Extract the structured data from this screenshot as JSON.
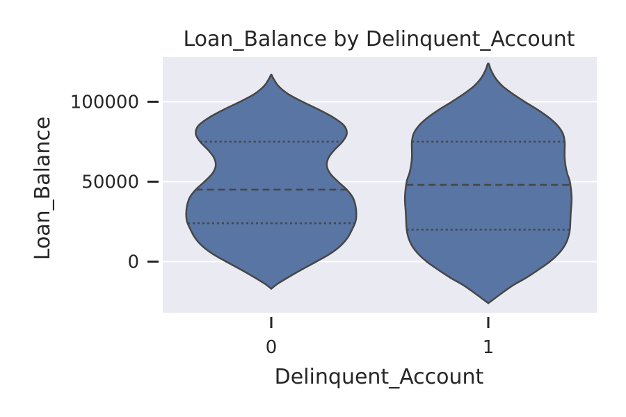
{
  "chart_data": {
    "type": "violin",
    "title": "Loan_Balance by Delinquent_Account",
    "xlabel": "Delinquent_Account",
    "ylabel": "Loan_Balance",
    "categories": [
      "0",
      "1"
    ],
    "y_ticks": [
      0,
      50000,
      100000
    ],
    "y_tick_labels": [
      "0",
      "50000",
      "100000"
    ],
    "ylim": [
      -32000,
      128000
    ],
    "grid": true,
    "inner": "quartile",
    "colors": {
      "background": "#eaeaf2",
      "violin_fill": "#5875a4",
      "violin_edge": "#464646",
      "grid": "#ffffff",
      "text": "#262626"
    },
    "violins": [
      {
        "category": "0",
        "quartiles": {
          "q1": 24000,
          "median": 45000,
          "q3": 75000
        },
        "density_profile": [
          [
            -17000,
            0.0
          ],
          [
            -14000,
            0.07
          ],
          [
            -10000,
            0.19
          ],
          [
            -5000,
            0.35
          ],
          [
            0,
            0.52
          ],
          [
            5000,
            0.68
          ],
          [
            10000,
            0.8
          ],
          [
            15000,
            0.88
          ],
          [
            20000,
            0.93
          ],
          [
            25000,
            0.97
          ],
          [
            30000,
            0.98
          ],
          [
            35000,
            0.97
          ],
          [
            40000,
            0.94
          ],
          [
            45000,
            0.87
          ],
          [
            50000,
            0.77
          ],
          [
            55000,
            0.68
          ],
          [
            60000,
            0.64
          ],
          [
            65000,
            0.66
          ],
          [
            70000,
            0.73
          ],
          [
            75000,
            0.82
          ],
          [
            80000,
            0.87
          ],
          [
            85000,
            0.84
          ],
          [
            90000,
            0.72
          ],
          [
            95000,
            0.55
          ],
          [
            100000,
            0.36
          ],
          [
            105000,
            0.19
          ],
          [
            110000,
            0.08
          ],
          [
            115000,
            0.02
          ],
          [
            117000,
            0.0
          ]
        ]
      },
      {
        "category": "1",
        "quartiles": {
          "q1": 20000,
          "median": 48000,
          "q3": 75000
        },
        "density_profile": [
          [
            -26000,
            0.0
          ],
          [
            -24000,
            0.05
          ],
          [
            -20000,
            0.15
          ],
          [
            -15000,
            0.28
          ],
          [
            -10000,
            0.44
          ],
          [
            -5000,
            0.58
          ],
          [
            0,
            0.71
          ],
          [
            5000,
            0.81
          ],
          [
            10000,
            0.88
          ],
          [
            15000,
            0.92
          ],
          [
            20000,
            0.94
          ],
          [
            30000,
            0.95
          ],
          [
            40000,
            0.96
          ],
          [
            50000,
            0.94
          ],
          [
            55000,
            0.91
          ],
          [
            60000,
            0.89
          ],
          [
            65000,
            0.88
          ],
          [
            70000,
            0.88
          ],
          [
            75000,
            0.88
          ],
          [
            80000,
            0.86
          ],
          [
            85000,
            0.8
          ],
          [
            90000,
            0.7
          ],
          [
            95000,
            0.57
          ],
          [
            100000,
            0.42
          ],
          [
            105000,
            0.28
          ],
          [
            110000,
            0.16
          ],
          [
            115000,
            0.08
          ],
          [
            120000,
            0.03
          ],
          [
            124000,
            0.0
          ]
        ]
      }
    ]
  }
}
